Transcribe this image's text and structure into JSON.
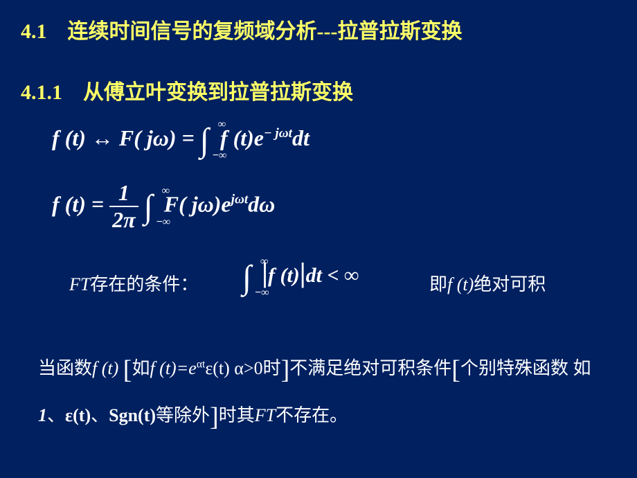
{
  "colors": {
    "background": "#002060",
    "heading": "#ffff66",
    "text": "#ffffff"
  },
  "title": "4.1　连续时间信号的复频域分析---拉普拉斯变换",
  "subtitle": "4.1.1　从傅立叶变换到拉普拉斯变换",
  "equation1": {
    "lhs": "f (t) ↔ F( jω) = ",
    "int_upper": "∞",
    "int_lower": "−∞",
    "integrand": "f (t)e",
    "exp": "− jωt",
    "dt": "dt"
  },
  "equation2": {
    "lhs": "f (t) = ",
    "frac_num": "1",
    "frac_den": "2π",
    "int_upper": "∞",
    "int_lower": "−∞",
    "integrand": "F( jω)e",
    "exp": "jωt",
    "dw": "dω"
  },
  "condition": {
    "label_it": "FT",
    "label_cn": "存在的条件：",
    "int_upper": "∞",
    "int_lower": "−∞",
    "abs_l": "|",
    "ft": "f (t)",
    "abs_r": "|",
    "dt": "dt",
    "lt": " < ∞",
    "note_pre": "即",
    "note_ft": "f (t)",
    "note_post": "绝对可积"
  },
  "paragraph": {
    "p1": "当函数",
    "ft1": "f (t) ",
    "lb1": "[",
    "p2": "如",
    "ft2": "f (t)=e",
    "exp": "αt",
    "eps1": "ε(t)",
    "sp": "   α>0",
    "p3": "时",
    "rb1": "]",
    "p4": "不满足绝对可积条件",
    "lb2": "[",
    "p5": "个别特殊函数 如",
    "one": "1",
    "p6": "、",
    "eps2": "ε(t)",
    "p7": "、",
    "sgn": "Sgn(t)",
    "p8": "等除外",
    "rb2": "]",
    "p9": "时其",
    "ft3": "FT",
    "p10": "不存在。"
  }
}
